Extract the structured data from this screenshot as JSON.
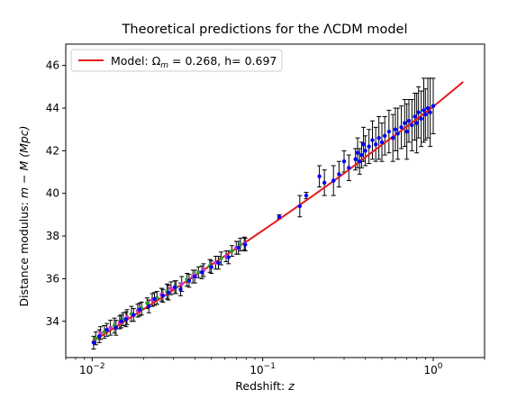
{
  "chart_data": {
    "type": "scatter",
    "title": "Theoretical predictions for the ΛCDM model",
    "xlabel_text": "Redshift: ",
    "xlabel_var": "z",
    "ylabel_text": "Distance modulus: ",
    "ylabel_var": "m − M (Mpc)",
    "xscale": "log",
    "xlim": [
      0.007,
      2.0
    ],
    "ylim": [
      32.3,
      47.0
    ],
    "xticks": [
      {
        "value": 0.01,
        "base": "10",
        "exp": "−2"
      },
      {
        "value": 0.1,
        "base": "10",
        "exp": "−1"
      },
      {
        "value": 1,
        "base": "10",
        "exp": "0"
      }
    ],
    "yticks": [
      34,
      36,
      38,
      40,
      42,
      44,
      46
    ],
    "grid": false,
    "legend": {
      "position": "top-left",
      "entry_prefix": "Model: ",
      "entry_omega": "Ω",
      "entry_sub": "m",
      "entry_rest": " = 0.268, h= 0.697"
    },
    "colors": {
      "model_line": "#e41a1c",
      "error_bars": "#000000",
      "points_primary": "#0000ff",
      "points_low_z_a": "#2ca02c",
      "points_low_z_b": "#cc33cc"
    },
    "model": {
      "omega_m": 0.268,
      "h": 0.697,
      "x": [
        0.01,
        0.015,
        0.02,
        0.03,
        0.05,
        0.08,
        0.12,
        0.2,
        0.3,
        0.5,
        0.7,
        1.0,
        1.5
      ],
      "y": [
        33.04,
        33.93,
        34.57,
        35.48,
        36.65,
        37.73,
        38.69,
        39.93,
        40.94,
        42.28,
        43.13,
        44.07,
        45.23
      ]
    },
    "series": [
      {
        "key": "low_z_a",
        "x": [
          0.0105,
          0.0118,
          0.0135,
          0.0152,
          0.017,
          0.0195,
          0.021,
          0.024,
          0.0275,
          0.031,
          0.036,
          0.042,
          0.049,
          0.057,
          0.066,
          0.074
        ],
        "y": [
          33.2,
          33.5,
          33.8,
          34.1,
          34.35,
          34.6,
          34.85,
          35.1,
          35.4,
          35.6,
          35.95,
          36.3,
          36.6,
          36.95,
          37.3,
          37.6
        ],
        "err": [
          0.3,
          0.3,
          0.35,
          0.3,
          0.35,
          0.3,
          0.25,
          0.3,
          0.35,
          0.3,
          0.3,
          0.25,
          0.3,
          0.3,
          0.25,
          0.3
        ]
      },
      {
        "key": "low_z_b",
        "x": [
          0.0112,
          0.0128,
          0.0145,
          0.016,
          0.0185,
          0.0225,
          0.0255,
          0.029,
          0.0335,
          0.039,
          0.045,
          0.053,
          0.061,
          0.07,
          0.078
        ],
        "y": [
          33.45,
          33.7,
          33.95,
          34.2,
          34.5,
          35.0,
          35.25,
          35.55,
          35.75,
          36.1,
          36.4,
          36.75,
          37.05,
          37.45,
          37.65
        ],
        "err": [
          0.3,
          0.35,
          0.3,
          0.35,
          0.3,
          0.3,
          0.3,
          0.3,
          0.35,
          0.3,
          0.3,
          0.3,
          0.25,
          0.3,
          0.3
        ]
      },
      {
        "key": "primary",
        "x": [
          0.0102,
          0.011,
          0.0122,
          0.0138,
          0.0148,
          0.0158,
          0.0175,
          0.019,
          0.0215,
          0.0232,
          0.026,
          0.028,
          0.0305,
          0.033,
          0.037,
          0.04,
          0.044,
          0.05,
          0.055,
          0.063,
          0.072,
          0.079,
          0.125,
          0.165,
          0.18,
          0.215,
          0.23,
          0.26,
          0.28,
          0.3,
          0.32,
          0.35,
          0.36,
          0.37,
          0.38,
          0.39,
          0.4,
          0.42,
          0.44,
          0.46,
          0.48,
          0.5,
          0.52,
          0.55,
          0.58,
          0.6,
          0.62,
          0.65,
          0.68,
          0.7,
          0.72,
          0.75,
          0.78,
          0.8,
          0.82,
          0.85,
          0.88,
          0.9,
          0.93,
          0.96,
          1.0
        ],
        "y": [
          33.0,
          33.3,
          33.6,
          33.7,
          34.0,
          34.1,
          34.3,
          34.55,
          34.7,
          35.05,
          35.2,
          35.35,
          35.6,
          35.5,
          35.9,
          36.1,
          36.3,
          36.55,
          36.75,
          37.0,
          37.45,
          37.6,
          38.9,
          39.4,
          39.9,
          40.8,
          40.5,
          40.6,
          40.9,
          41.5,
          41.2,
          41.6,
          41.9,
          41.5,
          41.8,
          42.3,
          42.0,
          42.2,
          42.5,
          42.3,
          42.6,
          42.4,
          42.7,
          42.9,
          42.6,
          43.0,
          42.8,
          43.1,
          43.3,
          42.9,
          43.4,
          43.2,
          43.6,
          43.3,
          43.8,
          43.5,
          43.9,
          43.7,
          44.0,
          43.8,
          44.1
        ],
        "err": [
          0.3,
          0.3,
          0.3,
          0.35,
          0.3,
          0.35,
          0.3,
          0.3,
          0.3,
          0.3,
          0.3,
          0.35,
          0.3,
          0.3,
          0.3,
          0.3,
          0.3,
          0.3,
          0.3,
          0.3,
          0.3,
          0.3,
          0.1,
          0.5,
          0.15,
          0.5,
          0.6,
          0.7,
          0.6,
          0.5,
          0.6,
          0.5,
          0.7,
          0.6,
          0.6,
          0.8,
          0.7,
          0.8,
          0.9,
          0.8,
          1.0,
          0.9,
          0.9,
          1.0,
          1.1,
          1.0,
          1.2,
          1.0,
          1.1,
          1.3,
          1.0,
          1.2,
          1.1,
          1.4,
          1.2,
          1.3,
          1.5,
          1.2,
          1.4,
          1.6,
          1.3
        ]
      }
    ]
  }
}
